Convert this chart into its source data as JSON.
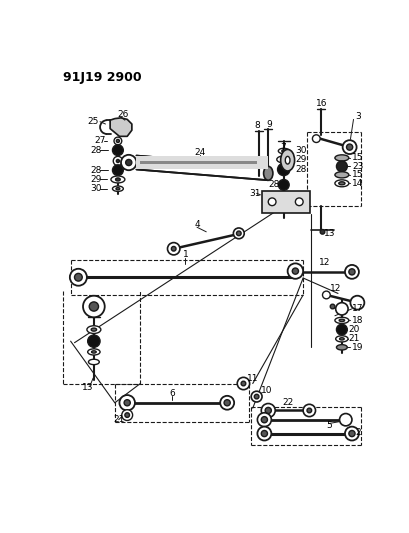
{
  "title": "91J19 2900",
  "bg_color": "#ffffff",
  "line_color": "#1a1a1a",
  "text_color": "#000000",
  "fig_width": 4.1,
  "fig_height": 5.33,
  "dpi": 100
}
